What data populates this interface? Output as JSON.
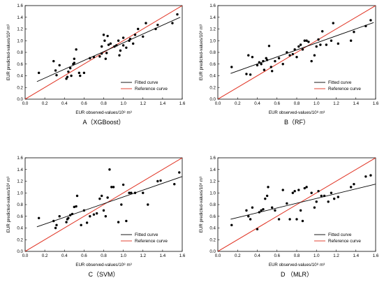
{
  "figure": {
    "background": "#ffffff"
  },
  "colors": {
    "points": "#000000",
    "fitted": "#000000",
    "reference": "#e03020",
    "frame": "#000000"
  },
  "chart_data": [
    {
      "type": "scatter",
      "caption": "A（XGBoost）",
      "xlabel": "EUR observed-values/10⁸ m³",
      "ylabel": "EUR predicted-values/10⁸ m³",
      "xlim": [
        0.0,
        1.6
      ],
      "ylim": [
        0.0,
        1.6
      ],
      "xticks": [
        "0.0",
        "0.2",
        "0.4",
        "0.6",
        "0.8",
        "1.0",
        "1.2",
        "1.4",
        "1.6"
      ],
      "yticks": [
        "0.0",
        "0.2",
        "0.4",
        "0.6",
        "0.8",
        "1.0",
        "1.2",
        "1.4",
        "1.6"
      ],
      "legend": {
        "position": "bottom-right",
        "entries": [
          "Fitted curve",
          "Reference curve"
        ]
      },
      "fitted_line": [
        [
          0.12,
          0.3
        ],
        [
          1.58,
          1.4
        ]
      ],
      "reference_line": [
        [
          0.0,
          0.0
        ],
        [
          1.6,
          1.6
        ]
      ],
      "points": [
        [
          0.14,
          0.45
        ],
        [
          0.29,
          0.65
        ],
        [
          0.31,
          0.49
        ],
        [
          0.32,
          0.41
        ],
        [
          0.35,
          0.58
        ],
        [
          0.42,
          0.35
        ],
        [
          0.43,
          0.38
        ],
        [
          0.44,
          0.47
        ],
        [
          0.46,
          0.53
        ],
        [
          0.47,
          0.4
        ],
        [
          0.49,
          0.6
        ],
        [
          0.5,
          0.69
        ],
        [
          0.5,
          0.62
        ],
        [
          0.52,
          0.85
        ],
        [
          0.55,
          0.45
        ],
        [
          0.56,
          0.4
        ],
        [
          0.6,
          0.45
        ],
        [
          0.66,
          0.7
        ],
        [
          0.7,
          0.72
        ],
        [
          0.76,
          0.73
        ],
        [
          0.78,
          0.78
        ],
        [
          0.78,
          0.9
        ],
        [
          0.8,
          1.1
        ],
        [
          0.81,
          1.0
        ],
        [
          0.82,
          0.69
        ],
        [
          0.83,
          0.79
        ],
        [
          0.84,
          1.08
        ],
        [
          0.85,
          0.93
        ],
        [
          0.87,
          0.95
        ],
        [
          0.91,
          0.9
        ],
        [
          0.93,
          0.92
        ],
        [
          0.95,
          1.0
        ],
        [
          0.96,
          0.75
        ],
        [
          0.97,
          0.83
        ],
        [
          1.0,
          0.92
        ],
        [
          1.0,
          1.05
        ],
        [
          1.03,
          0.88
        ],
        [
          1.06,
          1.0
        ],
        [
          1.07,
          1.03
        ],
        [
          1.1,
          0.95
        ],
        [
          1.12,
          1.1
        ],
        [
          1.15,
          1.2
        ],
        [
          1.2,
          1.07
        ],
        [
          1.23,
          1.3
        ],
        [
          1.33,
          1.2
        ],
        [
          1.35,
          1.27
        ],
        [
          1.5,
          1.3
        ],
        [
          1.55,
          1.45
        ]
      ]
    },
    {
      "type": "scatter",
      "caption": "B（RF）",
      "xlabel": "EUR observed-values/10⁸ m³",
      "ylabel": "EUR predicted-values/10⁸ m³",
      "xlim": [
        0.0,
        1.6
      ],
      "ylim": [
        0.0,
        1.6
      ],
      "xticks": [
        "0.0",
        "0.2",
        "0.4",
        "0.6",
        "0.8",
        "1.0",
        "1.2",
        "1.4",
        "1.6"
      ],
      "yticks": [
        "0.0",
        "0.2",
        "0.4",
        "0.6",
        "0.8",
        "1.0",
        "1.2",
        "1.4",
        "1.6"
      ],
      "legend": {
        "position": "bottom-right",
        "entries": [
          "Fitted curve",
          "Reference curve"
        ]
      },
      "fitted_line": [
        [
          0.13,
          0.44
        ],
        [
          1.58,
          1.31
        ]
      ],
      "reference_line": [
        [
          0.0,
          0.0
        ],
        [
          1.6,
          1.6
        ]
      ],
      "points": [
        [
          0.14,
          0.55
        ],
        [
          0.29,
          0.43
        ],
        [
          0.31,
          0.75
        ],
        [
          0.33,
          0.42
        ],
        [
          0.35,
          0.72
        ],
        [
          0.4,
          0.58
        ],
        [
          0.42,
          0.63
        ],
        [
          0.44,
          0.6
        ],
        [
          0.46,
          0.65
        ],
        [
          0.47,
          0.5
        ],
        [
          0.49,
          0.7
        ],
        [
          0.5,
          0.67
        ],
        [
          0.52,
          0.91
        ],
        [
          0.54,
          0.55
        ],
        [
          0.55,
          0.48
        ],
        [
          0.58,
          0.65
        ],
        [
          0.62,
          0.7
        ],
        [
          0.66,
          0.6
        ],
        [
          0.7,
          0.8
        ],
        [
          0.73,
          0.75
        ],
        [
          0.76,
          0.77
        ],
        [
          0.78,
          0.85
        ],
        [
          0.8,
          0.72
        ],
        [
          0.82,
          0.9
        ],
        [
          0.84,
          0.93
        ],
        [
          0.86,
          0.85
        ],
        [
          0.88,
          1.0
        ],
        [
          0.9,
          1.0
        ],
        [
          0.92,
          0.98
        ],
        [
          0.95,
          0.65
        ],
        [
          0.98,
          0.75
        ],
        [
          1.0,
          0.9
        ],
        [
          1.02,
          1.02
        ],
        [
          1.04,
          0.93
        ],
        [
          1.06,
          1.16
        ],
        [
          1.1,
          0.93
        ],
        [
          1.15,
          1.0
        ],
        [
          1.17,
          1.3
        ],
        [
          1.22,
          0.95
        ],
        [
          1.35,
          1.0
        ],
        [
          1.38,
          1.15
        ],
        [
          1.5,
          1.25
        ],
        [
          1.55,
          1.35
        ]
      ]
    },
    {
      "type": "scatter",
      "caption": "C（SVM）",
      "xlabel": "EUR observed-values/10⁸ m³",
      "ylabel": "EUR predicted-values/10⁸ m³",
      "xlim": [
        0.0,
        1.6
      ],
      "ylim": [
        0.0,
        1.6
      ],
      "xticks": [
        "0.0",
        "0.2",
        "0.4",
        "0.6",
        "0.8",
        "1.0",
        "1.2",
        "1.4",
        "1.6"
      ],
      "yticks": [
        "0.0",
        "0.2",
        "0.4",
        "0.6",
        "0.8",
        "1.0",
        "1.2",
        "1.4",
        "1.6"
      ],
      "legend": {
        "position": "bottom-right",
        "entries": [
          "Fitted curve",
          "Reference curve"
        ]
      },
      "fitted_line": [
        [
          0.12,
          0.42
        ],
        [
          1.6,
          1.28
        ]
      ],
      "reference_line": [
        [
          0.0,
          0.0
        ],
        [
          1.6,
          1.6
        ]
      ],
      "points": [
        [
          0.14,
          0.57
        ],
        [
          0.29,
          0.52
        ],
        [
          0.31,
          0.4
        ],
        [
          0.32,
          0.45
        ],
        [
          0.35,
          0.6
        ],
        [
          0.42,
          0.5
        ],
        [
          0.43,
          0.55
        ],
        [
          0.44,
          0.57
        ],
        [
          0.46,
          0.62
        ],
        [
          0.48,
          0.64
        ],
        [
          0.5,
          0.76
        ],
        [
          0.52,
          0.77
        ],
        [
          0.53,
          0.95
        ],
        [
          0.57,
          0.45
        ],
        [
          0.6,
          0.7
        ],
        [
          0.63,
          0.49
        ],
        [
          0.66,
          0.6
        ],
        [
          0.7,
          0.63
        ],
        [
          0.73,
          0.65
        ],
        [
          0.76,
          0.9
        ],
        [
          0.78,
          0.95
        ],
        [
          0.8,
          0.7
        ],
        [
          0.82,
          0.6
        ],
        [
          0.84,
          0.92
        ],
        [
          0.86,
          1.4
        ],
        [
          0.88,
          1.1
        ],
        [
          0.9,
          1.1
        ],
        [
          0.95,
          0.5
        ],
        [
          0.98,
          0.8
        ],
        [
          1.0,
          1.14
        ],
        [
          1.03,
          0.52
        ],
        [
          1.06,
          1.0
        ],
        [
          1.08,
          1.0
        ],
        [
          1.12,
          1.0
        ],
        [
          1.2,
          1.0
        ],
        [
          1.25,
          0.8
        ],
        [
          1.35,
          1.2
        ],
        [
          1.38,
          1.21
        ],
        [
          1.52,
          1.15
        ],
        [
          1.57,
          1.35
        ]
      ]
    },
    {
      "type": "scatter",
      "caption": "D （MLR）",
      "xlabel": "EUR observed-values/10⁸ m³",
      "ylabel": "EUR predicted-values/10⁸ m³",
      "xlim": [
        0.0,
        1.6
      ],
      "ylim": [
        0.0,
        1.6
      ],
      "xticks": [
        "0.0",
        "0.2",
        "0.4",
        "0.6",
        "0.8",
        "1.0",
        "1.2",
        "1.4",
        "1.6"
      ],
      "yticks": [
        "0.0",
        "0.2",
        "0.4",
        "0.6",
        "0.8",
        "1.0",
        "1.2",
        "1.4",
        "1.6"
      ],
      "legend": {
        "position": "bottom-right",
        "entries": [
          "Fitted curve",
          "Reference curve"
        ]
      },
      "fitted_line": [
        [
          0.13,
          0.55
        ],
        [
          1.6,
          1.15
        ]
      ],
      "reference_line": [
        [
          0.0,
          0.0
        ],
        [
          1.6,
          1.6
        ]
      ],
      "points": [
        [
          0.14,
          0.45
        ],
        [
          0.29,
          0.7
        ],
        [
          0.31,
          0.6
        ],
        [
          0.33,
          0.55
        ],
        [
          0.35,
          0.75
        ],
        [
          0.4,
          0.38
        ],
        [
          0.42,
          0.67
        ],
        [
          0.44,
          0.7
        ],
        [
          0.46,
          0.72
        ],
        [
          0.48,
          0.9
        ],
        [
          0.5,
          0.95
        ],
        [
          0.51,
          1.1
        ],
        [
          0.55,
          0.75
        ],
        [
          0.58,
          0.7
        ],
        [
          0.62,
          0.55
        ],
        [
          0.66,
          1.05
        ],
        [
          0.7,
          0.82
        ],
        [
          0.73,
          0.55
        ],
        [
          0.76,
          1.0
        ],
        [
          0.78,
          1.03
        ],
        [
          0.8,
          0.55
        ],
        [
          0.82,
          1.05
        ],
        [
          0.84,
          0.7
        ],
        [
          0.86,
          0.52
        ],
        [
          0.88,
          1.08
        ],
        [
          0.9,
          1.1
        ],
        [
          0.95,
          1.0
        ],
        [
          0.98,
          0.75
        ],
        [
          1.0,
          0.85
        ],
        [
          1.02,
          1.03
        ],
        [
          1.05,
          0.95
        ],
        [
          1.08,
          0.95
        ],
        [
          1.12,
          0.85
        ],
        [
          1.15,
          1.0
        ],
        [
          1.18,
          0.9
        ],
        [
          1.22,
          0.93
        ],
        [
          1.35,
          1.1
        ],
        [
          1.38,
          1.15
        ],
        [
          1.5,
          1.28
        ],
        [
          1.55,
          1.3
        ]
      ]
    }
  ]
}
